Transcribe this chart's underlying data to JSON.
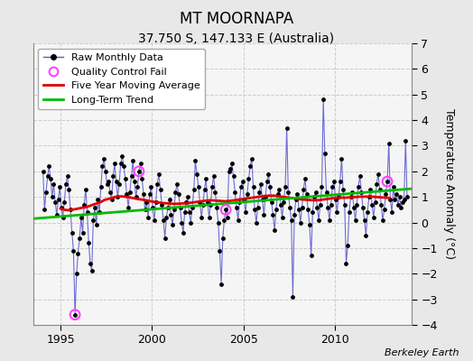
{
  "title": "MT MOORNAPA",
  "subtitle": "37.750 S, 147.133 E (Australia)",
  "ylabel": "Temperature Anomaly (°C)",
  "credit": "Berkeley Earth",
  "ylim": [
    -4,
    7
  ],
  "yticks": [
    -4,
    -3,
    -2,
    -1,
    0,
    1,
    2,
    3,
    4,
    5,
    6,
    7
  ],
  "xlim_start": 1993.5,
  "xlim_end": 2014.2,
  "xticks": [
    1995,
    2000,
    2005,
    2010
  ],
  "outer_bg_color": "#e8e8e8",
  "plot_bg_color": "#f5f5f5",
  "raw_line_color": "#5555cc",
  "raw_dot_color": "#000000",
  "moving_avg_color": "#dd0000",
  "trend_color": "#00bb00",
  "qc_fail_color": "#ff44ff",
  "raw_data": [
    [
      1994.042,
      2.0
    ],
    [
      1994.125,
      0.5
    ],
    [
      1994.208,
      1.2
    ],
    [
      1994.292,
      1.8
    ],
    [
      1994.375,
      2.2
    ],
    [
      1994.458,
      1.7
    ],
    [
      1994.542,
      1.0
    ],
    [
      1994.625,
      1.5
    ],
    [
      1994.708,
      0.8
    ],
    [
      1994.792,
      0.3
    ],
    [
      1994.875,
      0.9
    ],
    [
      1994.958,
      1.4
    ],
    [
      1995.042,
      0.6
    ],
    [
      1995.125,
      0.2
    ],
    [
      1995.208,
      0.8
    ],
    [
      1995.292,
      1.5
    ],
    [
      1995.375,
      1.8
    ],
    [
      1995.458,
      1.3
    ],
    [
      1995.542,
      0.5
    ],
    [
      1995.625,
      -0.4
    ],
    [
      1995.708,
      -1.1
    ],
    [
      1995.792,
      -3.6
    ],
    [
      1995.875,
      -2.0
    ],
    [
      1995.958,
      -1.2
    ],
    [
      1996.042,
      -0.6
    ],
    [
      1996.125,
      0.2
    ],
    [
      1996.208,
      -0.4
    ],
    [
      1996.292,
      0.7
    ],
    [
      1996.375,
      1.3
    ],
    [
      1996.458,
      0.4
    ],
    [
      1996.542,
      -0.8
    ],
    [
      1996.625,
      -1.6
    ],
    [
      1996.708,
      -1.9
    ],
    [
      1996.792,
      0.1
    ],
    [
      1996.875,
      0.6
    ],
    [
      1996.958,
      -0.1
    ],
    [
      1997.042,
      0.9
    ],
    [
      1997.125,
      0.4
    ],
    [
      1997.208,
      1.4
    ],
    [
      1997.292,
      2.2
    ],
    [
      1997.375,
      2.5
    ],
    [
      1997.458,
      2.0
    ],
    [
      1997.542,
      1.5
    ],
    [
      1997.625,
      1.6
    ],
    [
      1997.708,
      1.2
    ],
    [
      1997.792,
      0.9
    ],
    [
      1997.875,
      1.8
    ],
    [
      1997.958,
      2.3
    ],
    [
      1998.042,
      1.6
    ],
    [
      1998.125,
      1.0
    ],
    [
      1998.208,
      1.5
    ],
    [
      1998.292,
      2.3
    ],
    [
      1998.375,
      2.6
    ],
    [
      1998.458,
      2.2
    ],
    [
      1998.542,
      1.7
    ],
    [
      1998.625,
      1.1
    ],
    [
      1998.708,
      0.6
    ],
    [
      1998.792,
      1.2
    ],
    [
      1998.875,
      1.8
    ],
    [
      1998.958,
      2.4
    ],
    [
      1999.042,
      1.6
    ],
    [
      1999.125,
      1.0
    ],
    [
      1999.208,
      1.4
    ],
    [
      1999.292,
      2.0
    ],
    [
      1999.375,
      2.3
    ],
    [
      1999.458,
      1.7
    ],
    [
      1999.542,
      1.1
    ],
    [
      1999.625,
      0.5
    ],
    [
      1999.708,
      0.8
    ],
    [
      1999.792,
      0.2
    ],
    [
      1999.875,
      1.1
    ],
    [
      1999.958,
      1.4
    ],
    [
      2000.042,
      0.6
    ],
    [
      2000.125,
      0.1
    ],
    [
      2000.208,
      0.8
    ],
    [
      2000.292,
      1.5
    ],
    [
      2000.375,
      1.9
    ],
    [
      2000.458,
      1.3
    ],
    [
      2000.542,
      0.7
    ],
    [
      2000.625,
      0.1
    ],
    [
      2000.708,
      -0.6
    ],
    [
      2000.792,
      0.2
    ],
    [
      2000.875,
      0.6
    ],
    [
      2000.958,
      0.9
    ],
    [
      2001.042,
      0.3
    ],
    [
      2001.125,
      -0.1
    ],
    [
      2001.208,
      0.5
    ],
    [
      2001.292,
      1.2
    ],
    [
      2001.375,
      1.5
    ],
    [
      2001.458,
      1.1
    ],
    [
      2001.542,
      0.6
    ],
    [
      2001.625,
      0.0
    ],
    [
      2001.708,
      -0.4
    ],
    [
      2001.792,
      0.4
    ],
    [
      2001.875,
      0.8
    ],
    [
      2001.958,
      1.0
    ],
    [
      2002.042,
      0.4
    ],
    [
      2002.125,
      0.0
    ],
    [
      2002.208,
      0.6
    ],
    [
      2002.292,
      1.3
    ],
    [
      2002.375,
      2.4
    ],
    [
      2002.458,
      1.9
    ],
    [
      2002.542,
      1.4
    ],
    [
      2002.625,
      0.8
    ],
    [
      2002.708,
      0.2
    ],
    [
      2002.792,
      0.7
    ],
    [
      2002.875,
      1.3
    ],
    [
      2002.958,
      1.7
    ],
    [
      2003.042,
      0.8
    ],
    [
      2003.125,
      0.2
    ],
    [
      2003.208,
      0.7
    ],
    [
      2003.292,
      1.4
    ],
    [
      2003.375,
      1.8
    ],
    [
      2003.458,
      1.2
    ],
    [
      2003.542,
      0.6
    ],
    [
      2003.625,
      0.0
    ],
    [
      2003.708,
      -1.1
    ],
    [
      2003.792,
      -2.4
    ],
    [
      2003.875,
      -0.6
    ],
    [
      2003.958,
      0.1
    ],
    [
      2004.042,
      0.5
    ],
    [
      2004.125,
      0.2
    ],
    [
      2004.208,
      2.0
    ],
    [
      2004.292,
      2.1
    ],
    [
      2004.375,
      2.3
    ],
    [
      2004.458,
      1.8
    ],
    [
      2004.542,
      1.2
    ],
    [
      2004.625,
      0.6
    ],
    [
      2004.708,
      0.1
    ],
    [
      2004.792,
      0.8
    ],
    [
      2004.875,
      1.4
    ],
    [
      2004.958,
      1.6
    ],
    [
      2005.042,
      0.9
    ],
    [
      2005.125,
      0.4
    ],
    [
      2005.208,
      1.1
    ],
    [
      2005.292,
      1.7
    ],
    [
      2005.375,
      2.2
    ],
    [
      2005.458,
      2.5
    ],
    [
      2005.542,
      1.4
    ],
    [
      2005.625,
      0.5
    ],
    [
      2005.708,
      0.0
    ],
    [
      2005.792,
      0.6
    ],
    [
      2005.875,
      1.2
    ],
    [
      2005.958,
      1.5
    ],
    [
      2006.042,
      0.9
    ],
    [
      2006.125,
      0.3
    ],
    [
      2006.208,
      1.0
    ],
    [
      2006.292,
      1.6
    ],
    [
      2006.375,
      1.9
    ],
    [
      2006.458,
      1.4
    ],
    [
      2006.542,
      0.8
    ],
    [
      2006.625,
      0.3
    ],
    [
      2006.708,
      -0.3
    ],
    [
      2006.792,
      0.5
    ],
    [
      2006.875,
      1.1
    ],
    [
      2006.958,
      1.3
    ],
    [
      2007.042,
      0.7
    ],
    [
      2007.125,
      0.2
    ],
    [
      2007.208,
      0.8
    ],
    [
      2007.292,
      1.4
    ],
    [
      2007.375,
      3.7
    ],
    [
      2007.458,
      1.2
    ],
    [
      2007.542,
      0.6
    ],
    [
      2007.625,
      0.1
    ],
    [
      2007.708,
      -2.9
    ],
    [
      2007.792,
      0.3
    ],
    [
      2007.875,
      0.9
    ],
    [
      2007.958,
      1.1
    ],
    [
      2008.042,
      0.5
    ],
    [
      2008.125,
      0.0
    ],
    [
      2008.208,
      0.6
    ],
    [
      2008.292,
      1.3
    ],
    [
      2008.375,
      1.7
    ],
    [
      2008.458,
      1.1
    ],
    [
      2008.542,
      0.5
    ],
    [
      2008.625,
      -0.1
    ],
    [
      2008.708,
      -1.3
    ],
    [
      2008.792,
      0.4
    ],
    [
      2008.875,
      1.0
    ],
    [
      2008.958,
      1.2
    ],
    [
      2009.042,
      0.6
    ],
    [
      2009.125,
      0.1
    ],
    [
      2009.208,
      0.7
    ],
    [
      2009.292,
      1.4
    ],
    [
      2009.375,
      4.8
    ],
    [
      2009.458,
      2.7
    ],
    [
      2009.542,
      1.2
    ],
    [
      2009.625,
      0.6
    ],
    [
      2009.708,
      0.1
    ],
    [
      2009.792,
      0.7
    ],
    [
      2009.875,
      1.4
    ],
    [
      2009.958,
      1.6
    ],
    [
      2010.042,
      0.9
    ],
    [
      2010.125,
      0.4
    ],
    [
      2010.208,
      1.0
    ],
    [
      2010.292,
      1.6
    ],
    [
      2010.375,
      2.5
    ],
    [
      2010.458,
      1.3
    ],
    [
      2010.542,
      0.7
    ],
    [
      2010.625,
      -1.6
    ],
    [
      2010.708,
      -0.9
    ],
    [
      2010.792,
      0.4
    ],
    [
      2010.875,
      1.0
    ],
    [
      2010.958,
      1.2
    ],
    [
      2011.042,
      0.6
    ],
    [
      2011.125,
      0.1
    ],
    [
      2011.208,
      0.7
    ],
    [
      2011.292,
      1.4
    ],
    [
      2011.375,
      1.8
    ],
    [
      2011.458,
      1.2
    ],
    [
      2011.542,
      0.6
    ],
    [
      2011.625,
      0.1
    ],
    [
      2011.708,
      -0.5
    ],
    [
      2011.792,
      0.4
    ],
    [
      2011.875,
      1.0
    ],
    [
      2011.958,
      1.3
    ],
    [
      2012.042,
      0.7
    ],
    [
      2012.125,
      0.2
    ],
    [
      2012.208,
      0.8
    ],
    [
      2012.292,
      1.5
    ],
    [
      2012.375,
      1.9
    ],
    [
      2012.458,
      1.3
    ],
    [
      2012.542,
      0.7
    ],
    [
      2012.625,
      0.1
    ],
    [
      2012.708,
      0.5
    ],
    [
      2012.792,
      1.1
    ],
    [
      2012.875,
      1.6
    ],
    [
      2012.958,
      3.1
    ],
    [
      2013.042,
      0.9
    ],
    [
      2013.125,
      0.4
    ],
    [
      2013.208,
      1.4
    ],
    [
      2013.292,
      0.9
    ],
    [
      2013.375,
      1.1
    ],
    [
      2013.458,
      0.7
    ],
    [
      2013.542,
      1.0
    ],
    [
      2013.625,
      0.6
    ],
    [
      2013.708,
      0.8
    ],
    [
      2013.792,
      0.9
    ],
    [
      2013.875,
      3.2
    ],
    [
      2013.958,
      1.0
    ]
  ],
  "qc_fail_points": [
    [
      1995.792,
      -3.6
    ],
    [
      1999.292,
      2.0
    ],
    [
      2004.042,
      0.5
    ],
    [
      2012.875,
      1.6
    ]
  ],
  "moving_avg": [
    [
      1995.0,
      0.55
    ],
    [
      1995.2,
      0.5
    ],
    [
      1995.4,
      0.48
    ],
    [
      1995.6,
      0.5
    ],
    [
      1995.8,
      0.52
    ],
    [
      1996.0,
      0.55
    ],
    [
      1996.2,
      0.58
    ],
    [
      1996.4,
      0.6
    ],
    [
      1996.6,
      0.65
    ],
    [
      1996.8,
      0.7
    ],
    [
      1997.0,
      0.75
    ],
    [
      1997.2,
      0.8
    ],
    [
      1997.4,
      0.88
    ],
    [
      1997.6,
      0.92
    ],
    [
      1997.8,
      0.95
    ],
    [
      1998.0,
      1.0
    ],
    [
      1998.2,
      1.02
    ],
    [
      1998.4,
      1.02
    ],
    [
      1998.6,
      1.0
    ],
    [
      1998.8,
      0.98
    ],
    [
      1999.0,
      0.95
    ],
    [
      1999.2,
      0.92
    ],
    [
      1999.4,
      0.9
    ],
    [
      1999.6,
      0.88
    ],
    [
      1999.8,
      0.85
    ],
    [
      2000.0,
      0.82
    ],
    [
      2000.2,
      0.8
    ],
    [
      2000.4,
      0.78
    ],
    [
      2000.6,
      0.76
    ],
    [
      2000.8,
      0.75
    ],
    [
      2001.0,
      0.74
    ],
    [
      2001.2,
      0.73
    ],
    [
      2001.4,
      0.73
    ],
    [
      2001.6,
      0.74
    ],
    [
      2001.8,
      0.75
    ],
    [
      2002.0,
      0.76
    ],
    [
      2002.2,
      0.78
    ],
    [
      2002.4,
      0.8
    ],
    [
      2002.6,
      0.82
    ],
    [
      2002.8,
      0.84
    ],
    [
      2003.0,
      0.86
    ],
    [
      2003.2,
      0.87
    ],
    [
      2003.4,
      0.86
    ],
    [
      2003.6,
      0.85
    ],
    [
      2003.8,
      0.84
    ],
    [
      2004.0,
      0.83
    ],
    [
      2004.2,
      0.84
    ],
    [
      2004.4,
      0.86
    ],
    [
      2004.6,
      0.88
    ],
    [
      2004.8,
      0.9
    ],
    [
      2005.0,
      0.92
    ],
    [
      2005.2,
      0.94
    ],
    [
      2005.4,
      0.96
    ],
    [
      2005.6,
      0.98
    ],
    [
      2005.8,
      1.0
    ],
    [
      2006.0,
      1.02
    ],
    [
      2006.2,
      1.04
    ],
    [
      2006.4,
      1.05
    ],
    [
      2006.6,
      1.05
    ],
    [
      2006.8,
      1.04
    ],
    [
      2007.0,
      1.02
    ],
    [
      2007.2,
      1.0
    ],
    [
      2007.4,
      0.98
    ],
    [
      2007.6,
      0.96
    ],
    [
      2007.8,
      0.94
    ],
    [
      2008.0,
      0.92
    ],
    [
      2008.2,
      0.9
    ],
    [
      2008.4,
      0.89
    ],
    [
      2008.6,
      0.88
    ],
    [
      2008.8,
      0.87
    ],
    [
      2009.0,
      0.87
    ],
    [
      2009.2,
      0.88
    ],
    [
      2009.4,
      0.9
    ],
    [
      2009.6,
      0.92
    ],
    [
      2009.8,
      0.94
    ],
    [
      2010.0,
      0.96
    ],
    [
      2010.2,
      0.97
    ],
    [
      2010.4,
      0.97
    ],
    [
      2010.6,
      0.97
    ],
    [
      2010.8,
      0.98
    ],
    [
      2011.0,
      0.99
    ],
    [
      2011.2,
      1.0
    ],
    [
      2011.4,
      1.01
    ],
    [
      2011.6,
      1.01
    ],
    [
      2011.8,
      1.01
    ],
    [
      2012.0,
      1.01
    ],
    [
      2012.2,
      1.0
    ],
    [
      2012.4,
      0.99
    ],
    [
      2012.6,
      0.98
    ],
    [
      2012.8,
      0.97
    ],
    [
      2013.0,
      0.96
    ]
  ],
  "trend_x": [
    1993.5,
    2014.2
  ],
  "trend_y": [
    0.15,
    1.32
  ],
  "legend_fontsize": 8,
  "title_fontsize": 12,
  "subtitle_fontsize": 10
}
